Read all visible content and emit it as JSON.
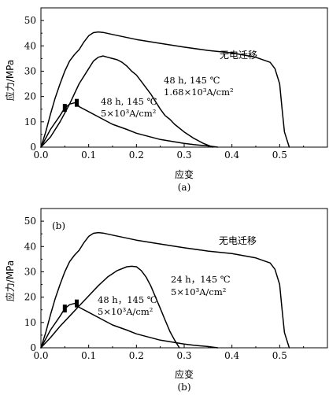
{
  "chart_data": [
    {
      "type": "line",
      "panel_label": "(a)",
      "caption": "(a)",
      "xlabel": "应变",
      "ylabel": "应力/MPa",
      "xlim": [
        0.0,
        0.6
      ],
      "ylim": [
        0,
        55
      ],
      "x_ticks": [
        "0.0",
        "0.1",
        "0.2",
        "0.3",
        "0.4",
        "0.5"
      ],
      "y_ticks": [
        "0",
        "10",
        "20",
        "30",
        "40",
        "50"
      ],
      "grid": false,
      "series": [
        {
          "name": "无电迁移",
          "x": [
            0,
            0.01,
            0.02,
            0.03,
            0.04,
            0.05,
            0.06,
            0.07,
            0.08,
            0.09,
            0.1,
            0.11,
            0.12,
            0.13,
            0.15,
            0.2,
            0.25,
            0.3,
            0.35,
            0.4,
            0.45,
            0.48,
            0.49,
            0.5,
            0.505,
            0.51,
            0.52
          ],
          "y": [
            0,
            6,
            13,
            19.5,
            25,
            30,
            34,
            36.5,
            38.5,
            41.5,
            44,
            45.2,
            45.5,
            45.3,
            44.5,
            42.5,
            41,
            39.5,
            38.2,
            37.2,
            35.5,
            33.5,
            31,
            25,
            15,
            6,
            0
          ]
        },
        {
          "name": "48 h, 145 ℃ 1.68×10³A/cm²",
          "x": [
            0,
            0.02,
            0.04,
            0.06,
            0.08,
            0.1,
            0.11,
            0.12,
            0.13,
            0.14,
            0.15,
            0.16,
            0.17,
            0.18,
            0.19,
            0.2,
            0.21,
            0.22,
            0.23,
            0.24,
            0.25,
            0.26,
            0.27,
            0.28,
            0.3,
            0.32,
            0.34,
            0.36
          ],
          "y": [
            0,
            4,
            10,
            17,
            25,
            31,
            34,
            35.5,
            36,
            35.5,
            35,
            34.5,
            33.5,
            32,
            30,
            28.5,
            26,
            23.5,
            21,
            18,
            15,
            12.5,
            11,
            9,
            6,
            3.5,
            1.5,
            0
          ]
        },
        {
          "name": "48 h, 145 ℃ 5×10³A/cm²",
          "x": [
            0,
            0.02,
            0.04,
            0.05,
            0.06,
            0.07,
            0.075,
            0.08,
            0.1,
            0.12,
            0.15,
            0.18,
            0.2,
            0.25,
            0.3,
            0.32,
            0.35,
            0.37
          ],
          "y": [
            0,
            7,
            12.5,
            15.5,
            17,
            17.5,
            17.5,
            16,
            14,
            12,
            9,
            7,
            5.5,
            3,
            1.5,
            1,
            0.5,
            0
          ]
        }
      ],
      "annotations": [
        {
          "line1": "48 h, 145 ℃",
          "line2": "1.68×10³A/cm²"
        },
        {
          "line1": "48 h, 145 ℃",
          "line2": "5×10³A/cm²"
        }
      ],
      "label_texts": {
        "series0": "无电迁移"
      }
    },
    {
      "type": "line",
      "panel_label": "(b)",
      "caption": "(b)",
      "xlabel": "应变",
      "ylabel": "应力/MPa",
      "xlim": [
        0.0,
        0.6
      ],
      "ylim": [
        0,
        55
      ],
      "x_ticks": [
        "0.0",
        "0.1",
        "0.2",
        "0.3",
        "0.4",
        "0.5"
      ],
      "y_ticks": [
        "0",
        "10",
        "20",
        "30",
        "40",
        "50"
      ],
      "grid": false,
      "series": [
        {
          "name": "无电迁移",
          "x": [
            0,
            0.01,
            0.02,
            0.03,
            0.04,
            0.05,
            0.06,
            0.07,
            0.08,
            0.09,
            0.1,
            0.11,
            0.12,
            0.13,
            0.15,
            0.2,
            0.25,
            0.3,
            0.35,
            0.4,
            0.45,
            0.48,
            0.49,
            0.5,
            0.505,
            0.51,
            0.52
          ],
          "y": [
            0,
            6,
            13,
            19.5,
            25,
            30,
            34,
            36.5,
            38.5,
            41.5,
            44,
            45.2,
            45.5,
            45.3,
            44.5,
            42.5,
            41,
            39.5,
            38.2,
            37.2,
            35.5,
            33.5,
            31,
            25,
            15,
            6,
            0
          ]
        },
        {
          "name": "24 h, 145 ℃ 5×10³A/cm²",
          "x": [
            0,
            0.02,
            0.04,
            0.06,
            0.08,
            0.1,
            0.12,
            0.14,
            0.16,
            0.18,
            0.19,
            0.2,
            0.21,
            0.22,
            0.23,
            0.24,
            0.25,
            0.26,
            0.27,
            0.28,
            0.29
          ],
          "y": [
            0,
            4,
            8.5,
            12.5,
            16.5,
            20.5,
            24.5,
            28,
            30.5,
            32,
            32.2,
            32,
            30.5,
            28,
            24.5,
            20,
            15.5,
            11,
            6.5,
            3,
            0
          ]
        },
        {
          "name": "48 h, 145 ℃ 5×10³A/cm²",
          "x": [
            0,
            0.02,
            0.04,
            0.05,
            0.06,
            0.07,
            0.075,
            0.08,
            0.1,
            0.12,
            0.15,
            0.18,
            0.2,
            0.25,
            0.3,
            0.32,
            0.35,
            0.37
          ],
          "y": [
            0,
            7,
            12.5,
            15.5,
            17,
            17.5,
            17.5,
            16,
            14,
            12,
            9,
            7,
            5.5,
            3,
            1.5,
            1,
            0.5,
            0
          ]
        }
      ],
      "annotations": [
        {
          "line1": "24 h，145 ℃",
          "line2": "5×10³A/cm²"
        },
        {
          "line1": "48 h，145 ℃",
          "line2": "5×10³A/cm²"
        }
      ],
      "label_texts": {
        "series0": "无电迁移"
      }
    }
  ]
}
